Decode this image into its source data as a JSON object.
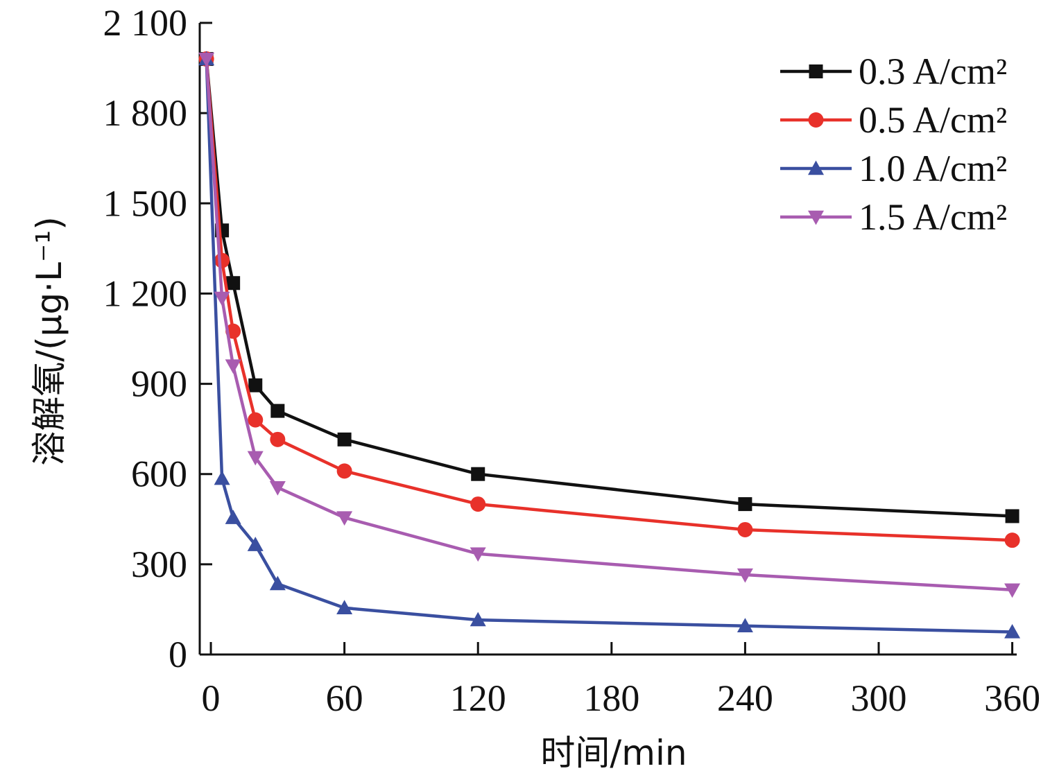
{
  "chart_data": {
    "type": "line",
    "xlabel": "时间/min",
    "ylabel": "溶解氧/(μg·L⁻¹)",
    "xlim": [
      -5,
      362
    ],
    "ylim": [
      0,
      2100
    ],
    "x_ticks": [
      0,
      60,
      120,
      180,
      240,
      300,
      360
    ],
    "y_ticks": [
      0,
      300,
      600,
      900,
      1200,
      1500,
      1800,
      2100
    ],
    "x_tick_labels": [
      "0",
      "60",
      "120",
      "180",
      "240",
      "300",
      "360"
    ],
    "y_tick_labels": [
      "0",
      "300",
      "600",
      "900",
      "1 200",
      "1 500",
      "1 800",
      "2 100"
    ],
    "legend_position": "top-right",
    "x": [
      -2,
      5,
      10,
      20,
      30,
      60,
      120,
      240,
      360
    ],
    "series": [
      {
        "name": "0.3 A/cm²",
        "color": "#111111",
        "marker": "square",
        "values": [
          1980,
          1410,
          1235,
          895,
          810,
          715,
          600,
          500,
          460
        ]
      },
      {
        "name": "0.5 A/cm²",
        "color": "#e8312a",
        "marker": "circle",
        "values": [
          1980,
          1310,
          1075,
          780,
          715,
          610,
          500,
          415,
          380
        ]
      },
      {
        "name": "1.0 A/cm²",
        "color": "#3a4fa0",
        "marker": "triangle-up",
        "values": [
          1980,
          585,
          455,
          365,
          235,
          155,
          115,
          95,
          75
        ]
      },
      {
        "name": "1.5 A/cm²",
        "color": "#a85cb0",
        "marker": "triangle-down",
        "values": [
          1980,
          1185,
          960,
          655,
          555,
          455,
          335,
          265,
          215
        ]
      }
    ]
  }
}
